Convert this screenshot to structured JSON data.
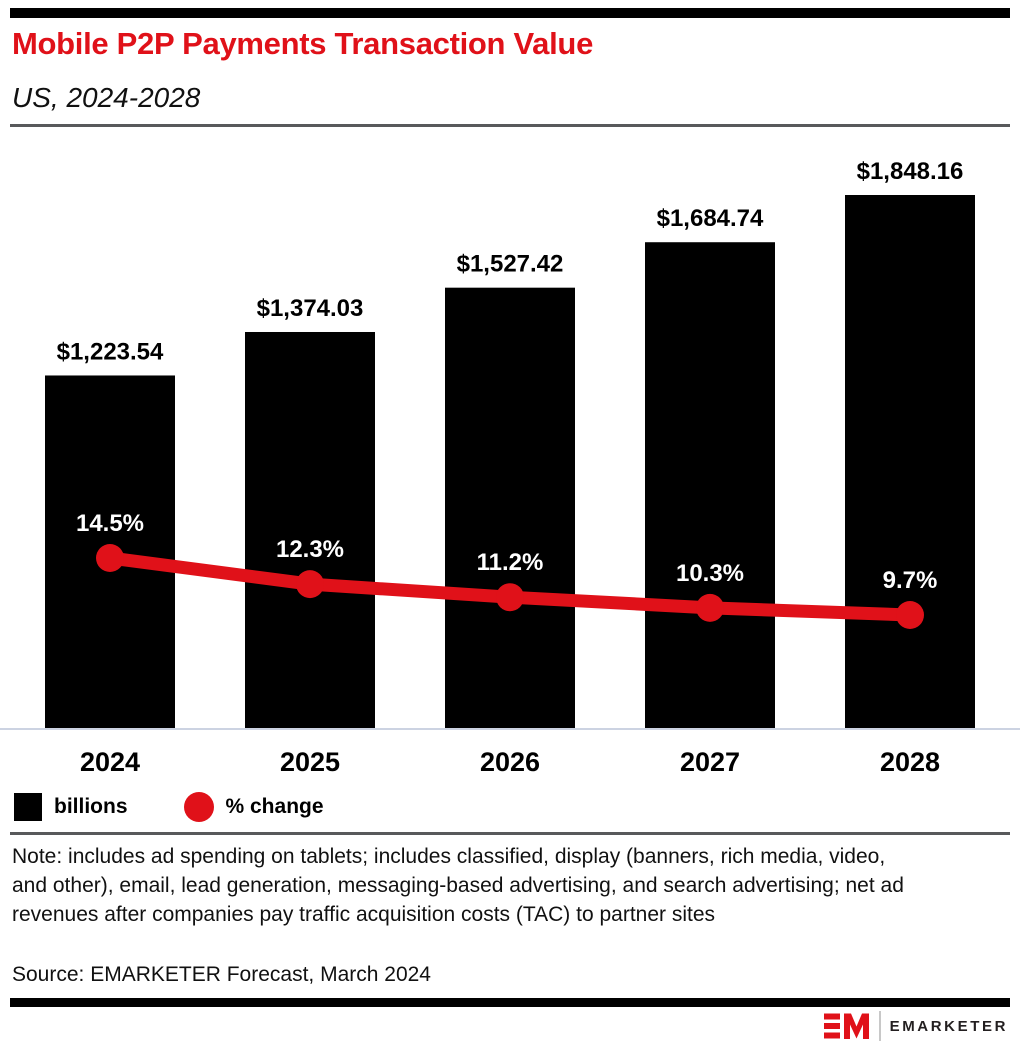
{
  "header": {
    "title": "Mobile P2P Payments Transaction Value",
    "subtitle": "US, 2024-2028"
  },
  "chart_data": {
    "type": "bar",
    "subtype": "bar-with-line-overlay",
    "categories": [
      "2024",
      "2025",
      "2026",
      "2027",
      "2028"
    ],
    "series": [
      {
        "name": "billions",
        "type": "bar",
        "values": [
          1223.54,
          1374.03,
          1527.42,
          1684.74,
          1848.16
        ],
        "labels": [
          "$1,223.54",
          "$1,374.03",
          "$1,527.42",
          "$1,684.74",
          "$1,848.16"
        ],
        "color": "#000000"
      },
      {
        "name": "% change",
        "type": "line",
        "values": [
          14.5,
          12.3,
          11.2,
          10.3,
          9.7
        ],
        "labels": [
          "14.5%",
          "12.3%",
          "11.2%",
          "10.3%",
          "9.7%"
        ],
        "color": "#e01119"
      }
    ],
    "legend": [
      {
        "label": "billions",
        "swatch": "square",
        "color": "#000000"
      },
      {
        "label": "% change",
        "swatch": "circle",
        "color": "#e01119"
      }
    ],
    "legend_position": "bottom-left",
    "grid": false,
    "ylim_bar": [
      0,
      1848.16
    ],
    "value_labels_shown": true
  },
  "footer": {
    "note": "Note: includes ad spending on tablets; includes classified, display (banners, rich media, video, and other), email, lead generation, messaging-based advertising, and search advertising; net ad revenues after companies pay traffic acquisition costs (TAC) to partner sites",
    "source": "Source: EMARKETER Forecast, March 2024"
  },
  "branding": {
    "logo_text": "EMARKETER"
  },
  "colors": {
    "brand_red": "#e01119",
    "bar_black": "#000000",
    "divider_gray": "#58595b",
    "baseline_gray": "#ccd3e2",
    "text_black": "#111111"
  }
}
